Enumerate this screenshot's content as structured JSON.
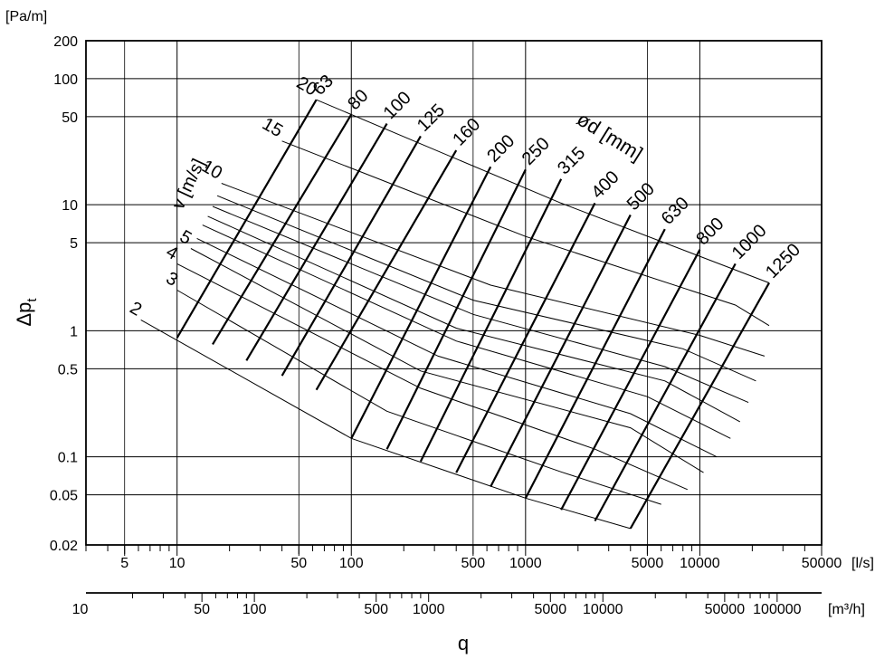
{
  "chart_data": {
    "type": "line",
    "title": "",
    "y_unit": "[Pa/m]",
    "ylabel": "Δp",
    "ylabel_sub": "t",
    "xlabel": "q",
    "x_unit": "[l/s]",
    "x2_unit": "[m³/h]",
    "x_scale": "log",
    "y_scale": "log",
    "grid": true,
    "xlim": [
      3,
      50000
    ],
    "ylim": [
      0.02,
      200
    ],
    "y_ticks": [
      {
        "v": 0.02,
        "label": "0.02"
      },
      {
        "v": 0.05,
        "label": "0.05"
      },
      {
        "v": 0.1,
        "label": "0.1"
      },
      {
        "v": 0.5,
        "label": "0.5"
      },
      {
        "v": 1,
        "label": "1"
      },
      {
        "v": 5,
        "label": "5"
      },
      {
        "v": 10,
        "label": "10"
      },
      {
        "v": 50,
        "label": "50"
      },
      {
        "v": 100,
        "label": "100"
      },
      {
        "v": 200,
        "label": "200"
      }
    ],
    "x_ticks": [
      {
        "v": 5,
        "label": "5"
      },
      {
        "v": 10,
        "label": "10"
      },
      {
        "v": 50,
        "label": "50"
      },
      {
        "v": 100,
        "label": "100"
      },
      {
        "v": 500,
        "label": "500"
      },
      {
        "v": 1000,
        "label": "1000"
      },
      {
        "v": 5000,
        "label": "5000"
      },
      {
        "v": 10000,
        "label": "10000"
      },
      {
        "v": 50000,
        "label": "50000"
      }
    ],
    "x2_ticks": [
      {
        "v": 10,
        "label": "10"
      },
      {
        "v": 50,
        "label": "50"
      },
      {
        "v": 100,
        "label": "100"
      },
      {
        "v": 500,
        "label": "500"
      },
      {
        "v": 1000,
        "label": "1000"
      },
      {
        "v": 5000,
        "label": "5000"
      },
      {
        "v": 10000,
        "label": "10000"
      },
      {
        "v": 50000,
        "label": "50000"
      },
      {
        "v": 100000,
        "label": "100000"
      }
    ],
    "diameter_label": "ød [mm]",
    "velocity_label": "v [m/s]",
    "diameters": [
      {
        "label": "63",
        "lo": [
          10,
          0.88
        ],
        "hi": [
          63,
          68
        ]
      },
      {
        "label": "80",
        "lo": [
          16,
          0.78
        ],
        "hi": [
          100,
          52
        ]
      },
      {
        "label": "100",
        "lo": [
          25,
          0.58
        ],
        "hi": [
          160,
          44
        ]
      },
      {
        "label": "125",
        "lo": [
          40,
          0.44
        ],
        "hi": [
          250,
          35
        ]
      },
      {
        "label": "160",
        "lo": [
          63,
          0.34
        ],
        "hi": [
          400,
          27
        ]
      },
      {
        "label": "200",
        "lo": [
          100,
          0.14
        ],
        "hi": [
          630,
          20
        ]
      },
      {
        "label": "250",
        "lo": [
          160,
          0.115
        ],
        "hi": [
          1000,
          19
        ]
      },
      {
        "label": "315",
        "lo": [
          250,
          0.092
        ],
        "hi": [
          1600,
          16
        ]
      },
      {
        "label": "400",
        "lo": [
          400,
          0.075
        ],
        "hi": [
          2500,
          10.3
        ]
      },
      {
        "label": "500",
        "lo": [
          630,
          0.058
        ],
        "hi": [
          4000,
          8.3
        ]
      },
      {
        "label": "630",
        "lo": [
          1000,
          0.047
        ],
        "hi": [
          6300,
          6.4
        ]
      },
      {
        "label": "800",
        "lo": [
          1600,
          0.038
        ],
        "hi": [
          10000,
          4.4
        ]
      },
      {
        "label": "1000",
        "lo": [
          2500,
          0.031
        ],
        "hi": [
          16000,
          3.4
        ]
      },
      {
        "label": "1250",
        "lo": [
          4000,
          0.027
        ],
        "hi": [
          25000,
          2.4
        ]
      }
    ],
    "velocities": [
      {
        "label": "2",
        "points": [
          [
            6.2,
            1.22
          ],
          [
            100,
            0.14
          ],
          [
            1000,
            0.047
          ],
          [
            4000,
            0.027
          ]
        ]
      },
      {
        "label": "3",
        "points": [
          [
            10,
            2.1
          ],
          [
            160,
            0.23
          ],
          [
            1600,
            0.076
          ],
          [
            6000,
            0.042
          ]
        ]
      },
      {
        "label": "4",
        "points": [
          [
            10,
            3.4
          ],
          [
            250,
            0.35
          ],
          [
            2500,
            0.115
          ],
          [
            8500,
            0.055
          ]
        ]
      },
      {
        "label": "5",
        "points": [
          [
            12,
            4.5
          ],
          [
            250,
            0.48
          ],
          [
            4000,
            0.17
          ],
          [
            10500,
            0.075
          ]
        ]
      },
      {
        "label": "",
        "points": [
          [
            13,
            5.4
          ],
          [
            315,
            0.63
          ],
          [
            4000,
            0.22
          ],
          [
            12500,
            0.1
          ]
        ]
      },
      {
        "label": "",
        "points": [
          [
            14,
            6.9
          ],
          [
            400,
            0.83
          ],
          [
            5000,
            0.3
          ],
          [
            15000,
            0.14
          ]
        ]
      },
      {
        "label": "",
        "points": [
          [
            15,
            8.1
          ],
          [
            400,
            1.05
          ],
          [
            6300,
            0.4
          ],
          [
            17000,
            0.19
          ]
        ]
      },
      {
        "label": "",
        "points": [
          [
            16,
            9.7
          ],
          [
            500,
            1.35
          ],
          [
            6300,
            0.52
          ],
          [
            19000,
            0.27
          ]
        ]
      },
      {
        "label": "",
        "points": [
          [
            17,
            11.8
          ],
          [
            500,
            1.75
          ],
          [
            8000,
            0.72
          ],
          [
            21000,
            0.4
          ]
        ]
      },
      {
        "label": "10",
        "points": [
          [
            18,
            14.8
          ],
          [
            630,
            2.3
          ],
          [
            10000,
            0.92
          ],
          [
            23500,
            0.63
          ]
        ]
      },
      {
        "label": "15",
        "points": [
          [
            40,
            32
          ],
          [
            1000,
            5.6
          ],
          [
            16000,
            1.6
          ],
          [
            25000,
            1.1
          ]
        ]
      },
      {
        "label": "20",
        "points": [
          [
            63,
            68
          ],
          [
            1600,
            10.3
          ],
          [
            25000,
            2.4
          ]
        ]
      }
    ]
  }
}
